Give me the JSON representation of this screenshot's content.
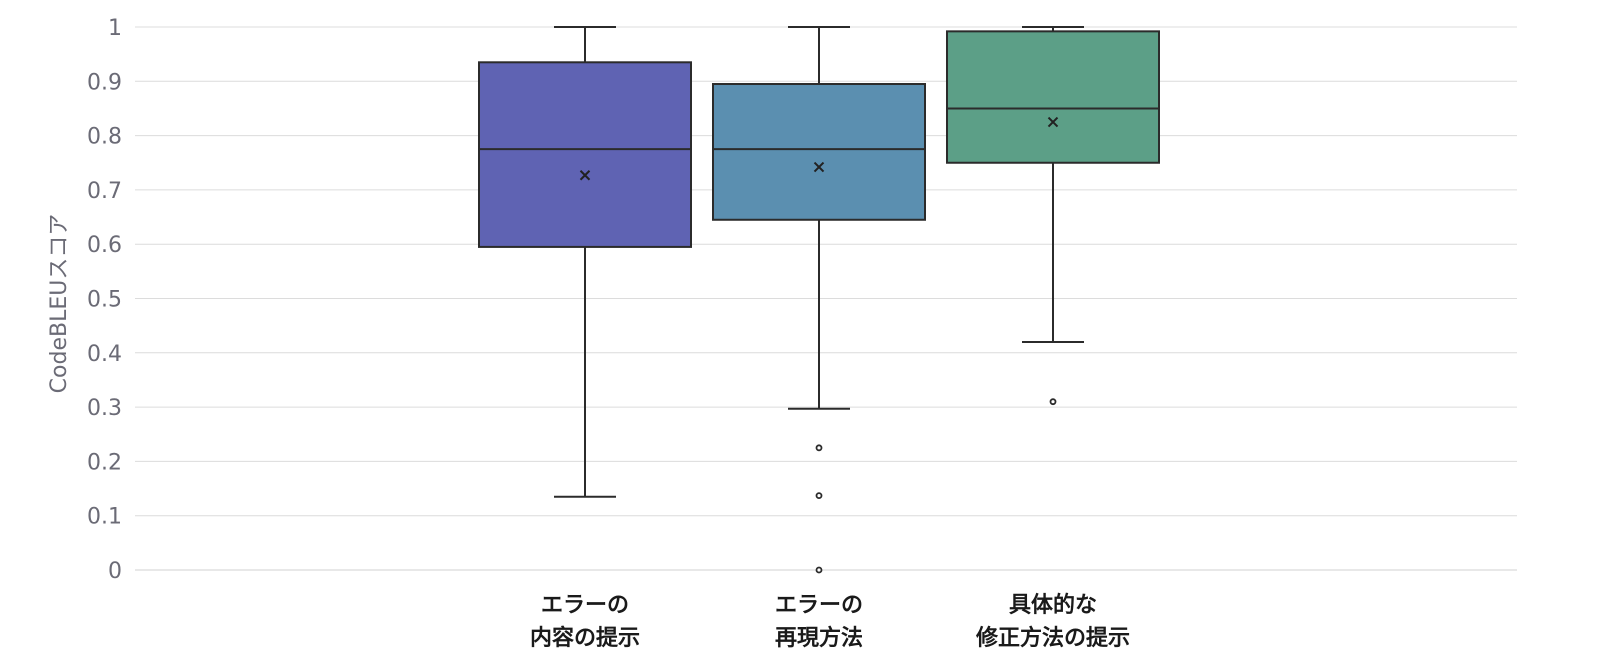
{
  "chart_data": {
    "type": "box",
    "ylabel": "CodeBLEUスコア",
    "ylim": [
      0,
      1
    ],
    "yticks": [
      "0",
      "0.1",
      "0.2",
      "0.3",
      "0.4",
      "0.5",
      "0.6",
      "0.7",
      "0.8",
      "0.9",
      "1"
    ],
    "grid": true,
    "categories": [
      {
        "lines": [
          "エラーの",
          "内容の提示"
        ]
      },
      {
        "lines": [
          "エラーの",
          "再現方法"
        ]
      },
      {
        "lines": [
          "具体的な",
          "修正方法の提示"
        ]
      }
    ],
    "series": [
      {
        "color": "#5f63b3",
        "whisker_low": 0.135,
        "q1": 0.595,
        "median": 0.775,
        "q3": 0.935,
        "whisker_high": 1.0,
        "mean": 0.727,
        "outliers": []
      },
      {
        "color": "#5b8fb0",
        "whisker_low": 0.297,
        "q1": 0.645,
        "median": 0.775,
        "q3": 0.895,
        "whisker_high": 1.0,
        "mean": 0.742,
        "outliers": [
          0.225,
          0.137,
          0.0
        ]
      },
      {
        "color": "#5c9f87",
        "whisker_low": 0.42,
        "q1": 0.75,
        "median": 0.85,
        "q3": 0.992,
        "whisker_high": 1.0,
        "mean": 0.825,
        "outliers": [
          0.31
        ]
      }
    ]
  }
}
